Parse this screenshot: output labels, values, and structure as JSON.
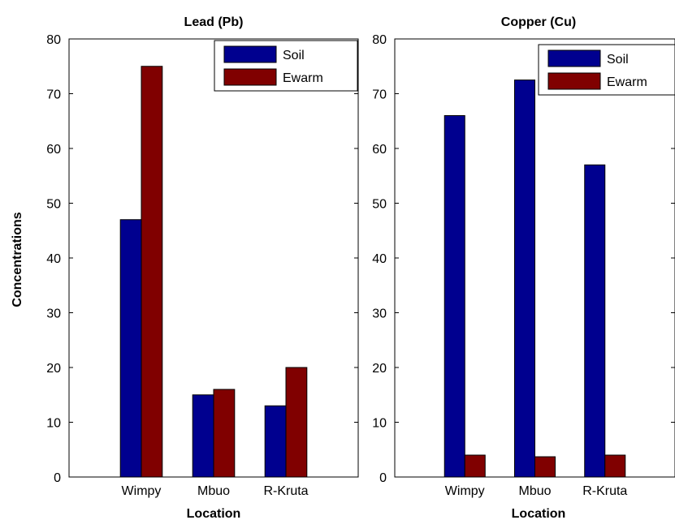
{
  "chart_data": [
    {
      "type": "bar",
      "title": "Lead (Pb)",
      "xlabel": "Location",
      "ylabel": "Concentrations",
      "categories": [
        "Wimpy",
        "Mbuo",
        "R-Kruta"
      ],
      "series": [
        {
          "name": "Soil",
          "values": [
            47,
            15,
            13
          ],
          "color": "#00008f"
        },
        {
          "name": "Ewarm",
          "values": [
            75,
            16,
            20
          ],
          "color": "#800000"
        }
      ],
      "ylim": [
        0,
        80
      ],
      "yticks": [
        0,
        10,
        20,
        30,
        40,
        50,
        60,
        70,
        80
      ],
      "legend": "top-right",
      "grid": false
    },
    {
      "type": "bar",
      "title": "Copper (Cu)",
      "xlabel": "Location",
      "ylabel": "",
      "categories": [
        "Wimpy",
        "Mbuo",
        "R-Kruta"
      ],
      "series": [
        {
          "name": "Soil",
          "values": [
            66,
            72.5,
            57
          ],
          "color": "#00008f"
        },
        {
          "name": "Ewarm",
          "values": [
            4,
            3.7,
            4
          ],
          "color": "#800000"
        }
      ],
      "ylim": [
        0,
        80
      ],
      "yticks": [
        0,
        10,
        20,
        30,
        40,
        50,
        60,
        70,
        80
      ],
      "legend": "top-right",
      "grid": false
    }
  ]
}
